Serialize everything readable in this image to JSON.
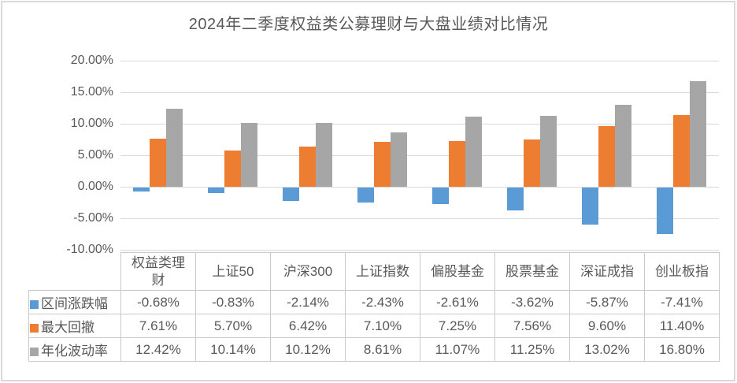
{
  "colors": {
    "series_blue": "#5B9BD5",
    "series_orange": "#ED7D31",
    "series_gray": "#A6A6A6",
    "gridline": "#D9D9D9",
    "text": "#595959",
    "table_border": "#C9C9C9",
    "frame_border": "#D9D9D9"
  },
  "chart_data": {
    "type": "bar",
    "title": "2024年二季度权益类公募理财与大盘业绩对比情况",
    "categories": [
      "权益类理财",
      "上证50",
      "沪深300",
      "上证指数",
      "偏股基金",
      "股票基金",
      "深证成指",
      "创业板指"
    ],
    "series": [
      {
        "name": "区间涨跌幅",
        "color": "#5B9BD5",
        "values": [
          -0.68,
          -0.83,
          -2.14,
          -2.43,
          -2.61,
          -3.62,
          -5.87,
          -7.41
        ],
        "formatted": [
          "-0.68%",
          "-0.83%",
          "-2.14%",
          "-2.43%",
          "-2.61%",
          "-3.62%",
          "-5.87%",
          "-7.41%"
        ]
      },
      {
        "name": "最大回撤",
        "color": "#ED7D31",
        "values": [
          7.61,
          5.7,
          6.42,
          7.1,
          7.25,
          7.56,
          9.6,
          11.4
        ],
        "formatted": [
          "7.61%",
          "5.70%",
          "6.42%",
          "7.10%",
          "7.25%",
          "7.56%",
          "9.60%",
          "11.40%"
        ]
      },
      {
        "name": "年化波动率",
        "color": "#A6A6A6",
        "values": [
          12.42,
          10.14,
          10.12,
          8.61,
          11.07,
          11.25,
          13.02,
          16.8
        ],
        "formatted": [
          "12.42%",
          "10.14%",
          "10.12%",
          "8.61%",
          "11.07%",
          "11.25%",
          "13.02%",
          "16.80%"
        ]
      }
    ],
    "ylim": [
      -10,
      20
    ],
    "ytick_step": 5,
    "ytick_labels": [
      "20.00%",
      "15.00%",
      "10.00%",
      "5.00%",
      "0.00%",
      "-5.00%",
      "-10.00%"
    ],
    "grid": true,
    "legend_position": "data-table-row-labels",
    "value_format": "0.00%"
  }
}
